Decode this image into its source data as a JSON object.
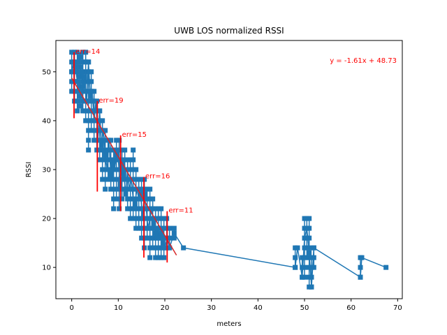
{
  "chart_data": {
    "type": "line",
    "title": "UWB LOS normalized RSSI",
    "xlabel": "meters",
    "ylabel": "RSSI",
    "xlim": [
      -3.4,
      71.0
    ],
    "ylim": [
      3.6,
      56.4
    ],
    "xticks": [
      0,
      10,
      20,
      30,
      40,
      50,
      60,
      70
    ],
    "yticks": [
      10,
      20,
      30,
      40,
      50
    ],
    "grid": false,
    "colors": {
      "series": "#1f77b4",
      "fit": "#d62728",
      "annotation": "#ff0000"
    },
    "series": [
      {
        "marker": "square",
        "x": [
          0.0,
          0.4,
          0.8,
          1.2,
          1.6,
          2.0,
          2.4,
          2.8,
          3.2,
          3.6,
          4.0,
          4.4,
          4.8,
          5.2,
          5.6,
          6.0,
          6.4,
          6.8,
          7.2,
          7.6,
          8.0,
          8.4,
          8.8,
          9.2,
          9.6,
          10.0,
          10.4,
          10.8,
          11.2,
          11.6,
          12.0,
          12.4,
          12.8,
          13.2,
          13.6,
          14.0,
          14.4,
          14.8,
          15.2,
          15.6,
          16.0,
          16.4,
          16.8,
          17.2,
          17.6,
          18.0,
          18.4,
          18.8,
          19.2,
          19.6,
          20.0,
          20.5,
          21.0,
          22.0,
          24.0,
          48.0,
          48.5,
          49.5,
          50.0,
          50.5,
          51.0,
          51.5,
          52.0,
          62.0,
          62.3,
          67.5
        ],
        "y": [
          50,
          52,
          51,
          48,
          53,
          50,
          47,
          49,
          44,
          52,
          45,
          46,
          40,
          44,
          36,
          42,
          35,
          38,
          33,
          30,
          36,
          29,
          31,
          30,
          33,
          32,
          27,
          31,
          29,
          25,
          30,
          26,
          28,
          24,
          23,
          26,
          24,
          25,
          20,
          25,
          22,
          18,
          20,
          22,
          19,
          17,
          18,
          16,
          17,
          15,
          14,
          16,
          14,
          17,
          14,
          10,
          14,
          8,
          16,
          18,
          13,
          6,
          14,
          8,
          12,
          10
        ]
      }
    ],
    "spread": [
      [
        0,
        46,
        54
      ],
      [
        0.6,
        44,
        54
      ],
      [
        1.2,
        42,
        54
      ],
      [
        1.8,
        43,
        54
      ],
      [
        2.4,
        42,
        54
      ],
      [
        3.0,
        40,
        54
      ],
      [
        3.6,
        34,
        52
      ],
      [
        4.2,
        38,
        50
      ],
      [
        4.8,
        36,
        46
      ],
      [
        5.4,
        34,
        44
      ],
      [
        6.0,
        32,
        42
      ],
      [
        6.6,
        28,
        40
      ],
      [
        7.2,
        26,
        38
      ],
      [
        7.8,
        28,
        36
      ],
      [
        8.4,
        26,
        36
      ],
      [
        9.0,
        22,
        34
      ],
      [
        9.6,
        24,
        36
      ],
      [
        10.2,
        22,
        36
      ],
      [
        10.8,
        24,
        34
      ],
      [
        11.4,
        26,
        34
      ],
      [
        12.0,
        22,
        32
      ],
      [
        12.6,
        20,
        32
      ],
      [
        13.2,
        20,
        34
      ],
      [
        13.8,
        18,
        30
      ],
      [
        14.4,
        18,
        28
      ],
      [
        15.0,
        16,
        28
      ],
      [
        15.6,
        14,
        28
      ],
      [
        16.2,
        16,
        26
      ],
      [
        16.8,
        12,
        26
      ],
      [
        17.4,
        14,
        24
      ],
      [
        18.0,
        12,
        22
      ],
      [
        18.6,
        12,
        22
      ],
      [
        19.2,
        12,
        22
      ],
      [
        19.8,
        12,
        20
      ],
      [
        20.4,
        14,
        20
      ],
      [
        21.0,
        14,
        18
      ],
      [
        22.0,
        16,
        18
      ],
      [
        48.0,
        10,
        14
      ],
      [
        49.5,
        8,
        12
      ],
      [
        50.0,
        8,
        20
      ],
      [
        50.5,
        12,
        20
      ],
      [
        51.0,
        6,
        20
      ],
      [
        51.5,
        6,
        12
      ],
      [
        52.0,
        10,
        14
      ],
      [
        62.0,
        8,
        12
      ]
    ],
    "fit": {
      "slope": -1.61,
      "intercept": 48.73,
      "x_range": [
        0,
        22.5
      ],
      "label": "y = -1.61x + 48.73"
    },
    "error_bars": [
      {
        "x": 0.5,
        "low": 40.5,
        "high": 54.0,
        "label": "err=14"
      },
      {
        "x": 5.5,
        "low": 25.5,
        "high": 44.0,
        "label": "err=19"
      },
      {
        "x": 10.5,
        "low": 21.5,
        "high": 37.0,
        "label": "err=15"
      },
      {
        "x": 15.5,
        "low": 12.0,
        "high": 28.5,
        "label": "err=16"
      },
      {
        "x": 20.5,
        "low": 11.0,
        "high": 21.5,
        "label": "err=11"
      }
    ]
  }
}
